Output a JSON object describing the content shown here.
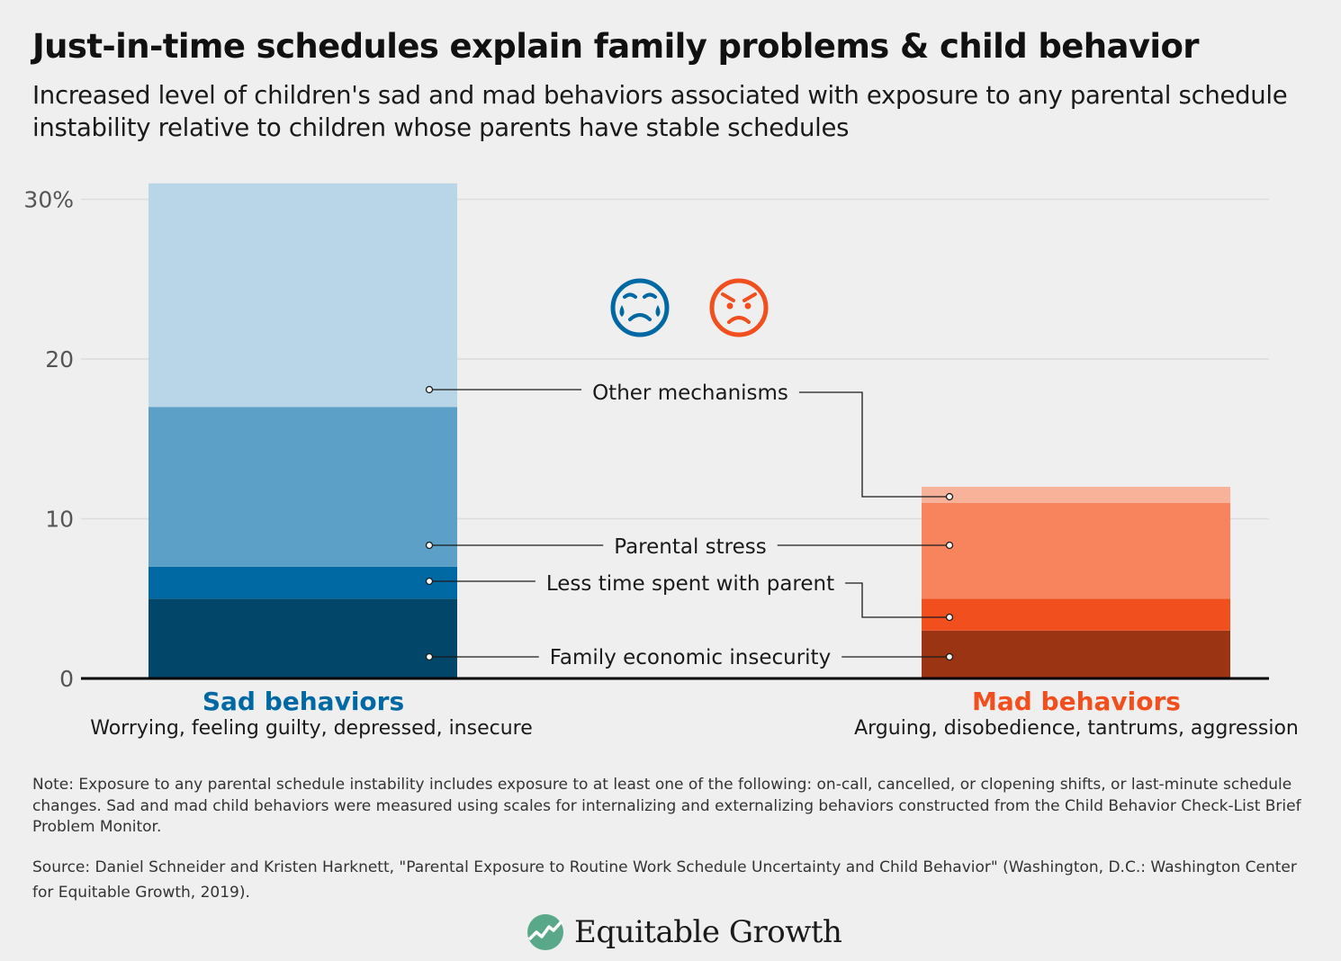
{
  "title": "Just-in-time schedules explain family problems & child behavior",
  "subtitle": "Increased level of children's sad and mad behaviors associated with exposure to any parental schedule instability relative to children whose parents have stable schedules",
  "note": "Note: Exposure to any parental schedule instability includes exposure to at least one of the following: on-call, cancelled, or clopening shifts, or last-minute schedule changes. Sad and mad child behaviors were measured using scales for internalizing and externalizing behaviors constructed from the Child Behavior Check-List Brief Problem Monitor.",
  "source": "Source: Daniel Schneider and Kristen Harknett, \"Parental Exposure to Routine Work Schedule Uncertainty and Child Behavior\" (Washington, D.C.: Washington Center for Equitable Growth, 2019).",
  "logo_text": "Equitable Growth",
  "icons": {
    "sad": "crying-face-icon",
    "mad": "angry-face-icon",
    "logo": "growth-leaf-icon"
  },
  "colors": {
    "sad": [
      "#02466a",
      "#0068a3",
      "#5ca0c8",
      "#b8d6e7"
    ],
    "mad": [
      "#9b3413",
      "#f24f1f",
      "#f7845c",
      "#f8b29a"
    ],
    "sad_label": "#0068a3",
    "mad_label": "#f24f1f"
  },
  "chart_data": {
    "type": "bar",
    "stacked": true,
    "ylim": [
      0,
      30
    ],
    "yticks": [
      0,
      10,
      20,
      30
    ],
    "ytick_labels": [
      "0",
      "10",
      "20",
      "30%"
    ],
    "grid": true,
    "categories": [
      {
        "name": "Sad behaviors",
        "description": "Worrying, feeling guilty, depressed, insecure"
      },
      {
        "name": "Mad behaviors",
        "description": "Arguing, disobedience, tantrums, aggression"
      }
    ],
    "series": [
      {
        "name": "Family economic insecurity",
        "values": [
          5,
          3
        ]
      },
      {
        "name": "Less time spent with parent",
        "values": [
          2,
          2
        ]
      },
      {
        "name": "Parental stress",
        "values": [
          10,
          6
        ]
      },
      {
        "name": "Other mechanisms",
        "values": [
          14,
          1
        ]
      }
    ]
  }
}
